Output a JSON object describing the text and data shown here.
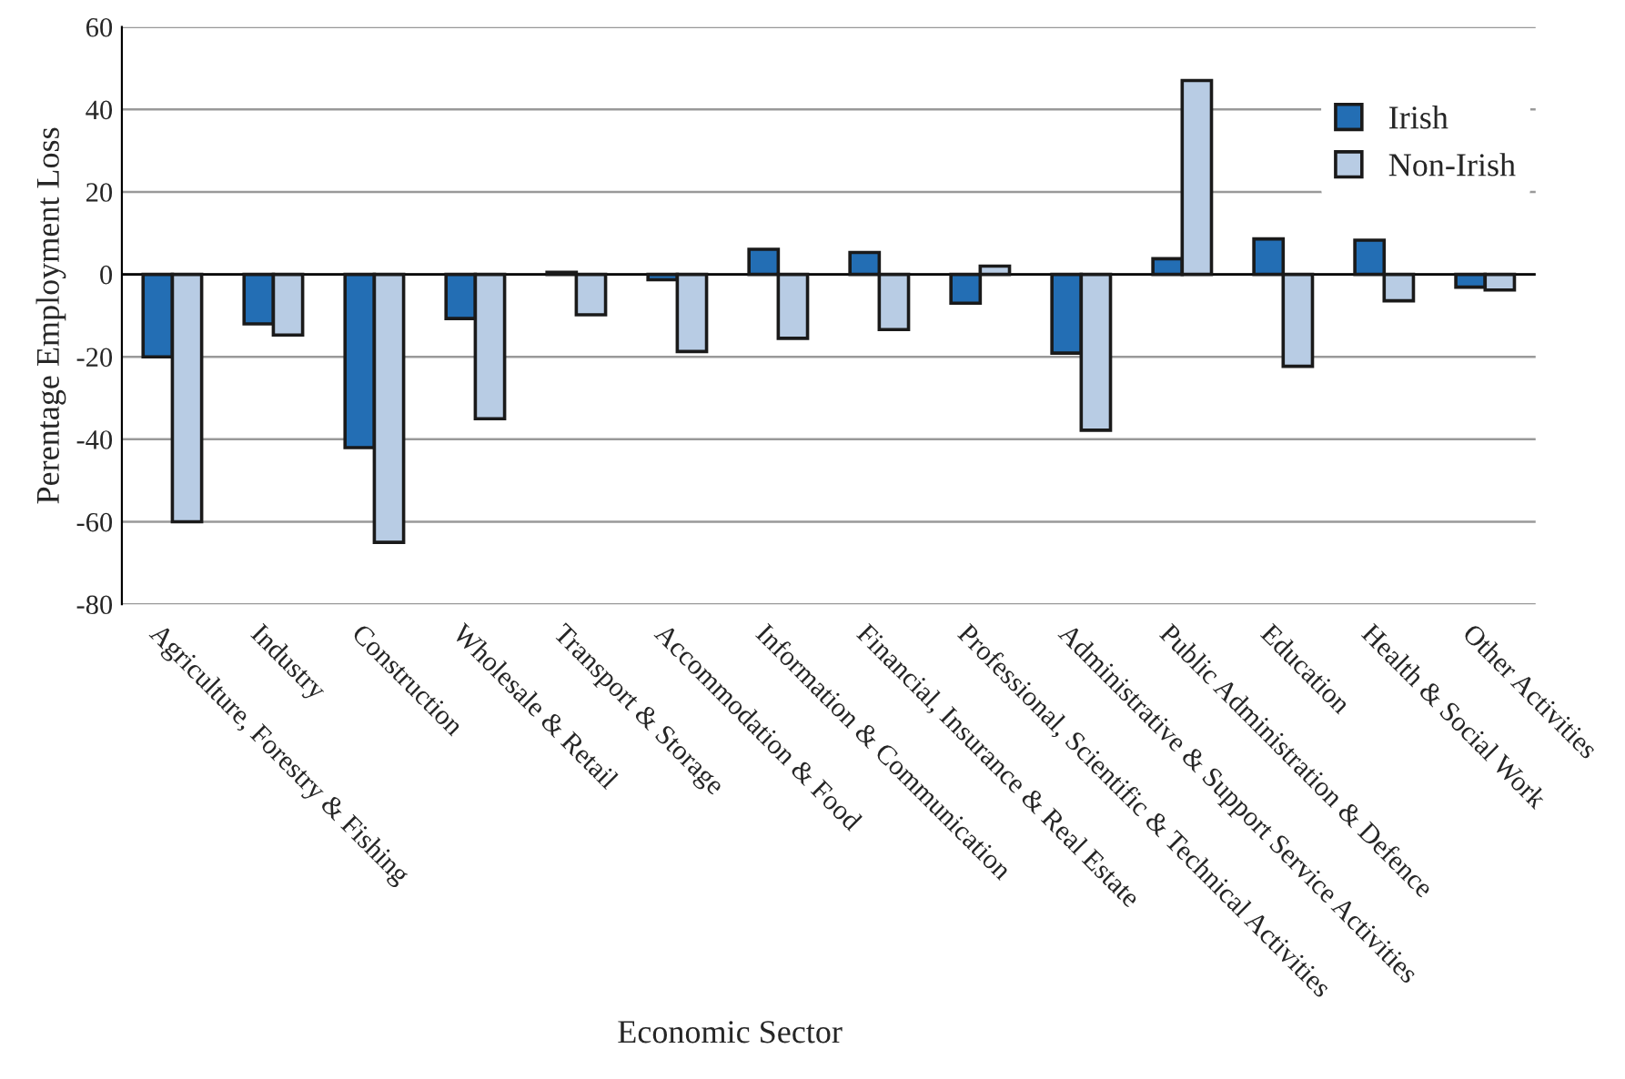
{
  "chart_data": {
    "type": "bar",
    "xlabel": "Economic Sector",
    "ylabel": "Perentage Employment Loss",
    "categories": [
      "Agriculture, Forestry & Fishing",
      "Industry",
      "Construction",
      "Wholesale & Retail",
      "Transport & Storage",
      "Accommodation & Food",
      "Information & Communication",
      "Financial, Insurance & Real Estate",
      "Professional, Scientific & Technical Activities",
      "Administrative & Support Service Activities",
      "Public Administration & Defence",
      "Education",
      "Health & Social Work",
      "Other Activities"
    ],
    "series": [
      {
        "name": "Irish",
        "color": "#236eb4",
        "values": [
          -20,
          -12,
          -42,
          -10.7,
          0.5,
          -1.3,
          6.1,
          5.3,
          -7,
          -19.1,
          3.8,
          8.6,
          8.3,
          -3.1
        ]
      },
      {
        "name": "Non-Irish",
        "color": "#b8cce4",
        "values": [
          -60,
          -14.7,
          -65,
          -35,
          -9.8,
          -18.7,
          -15.5,
          -13.4,
          2,
          -37.8,
          47,
          -22.3,
          -6.4,
          -3.8
        ]
      }
    ],
    "ylim": [
      -80,
      60
    ],
    "yticks": [
      -80,
      -60,
      -40,
      -20,
      0,
      20,
      40,
      60
    ],
    "grid": "y",
    "legend": "top right"
  }
}
